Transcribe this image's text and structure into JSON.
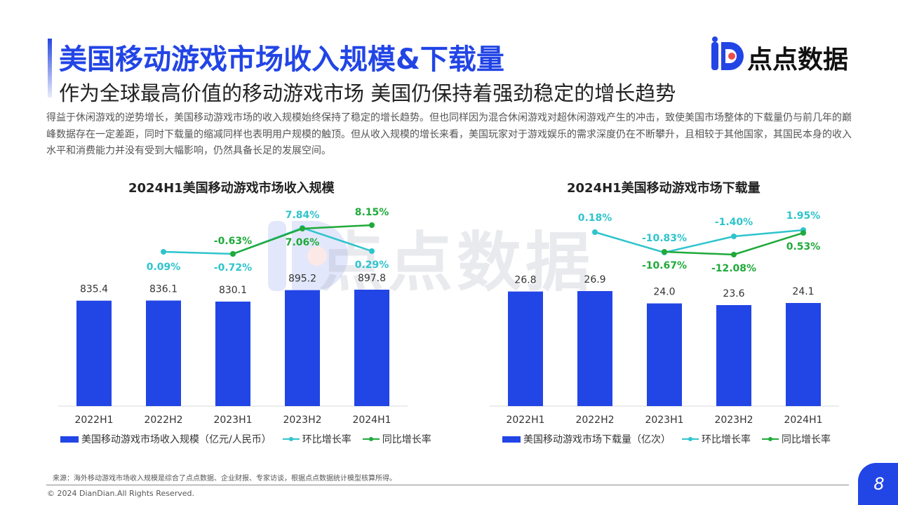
{
  "header": {
    "title": "美国移动游戏市场收入规模&下载量",
    "subtitle": "作为全球最高价值的移动游戏市场 美国仍保持着强劲稳定的增长趋势",
    "brand": "点点数据"
  },
  "intro_text": "得益于休闲游戏的逆势增长，美国移动游戏市场的收入规模始终保持了稳定的增长趋势。但也同样因为混合休闲游戏对超休闲游戏产生的冲击，致使美国市场整体的下载量仍与前几年的巅峰数据存在一定差距，同时下载量的缩减同样也表明用户规模的触顶。但从收入规模的增长来看，美国玩家对于游戏娱乐的需求深度仍在不断攀升，且相较于其他国家，其国民本身的收入水平和消费能力并没有受到大幅影响，仍然具备长足的发展空间。",
  "colors": {
    "bar": "#2245e6",
    "qoq": "#2ec4cc",
    "yoy": "#1faa3a",
    "accent": "#2245e6"
  },
  "chart_data": [
    {
      "type": "bar",
      "title": "2024H1美国移动游戏市场收入规模",
      "categories": [
        "2022H1",
        "2022H2",
        "2023H1",
        "2023H2",
        "2024H1"
      ],
      "series": [
        {
          "name": "美国移动游戏市场收入规模（亿元/人民币）",
          "type": "bar",
          "values": [
            835.4,
            836.1,
            830.1,
            895.2,
            897.8
          ],
          "labels": [
            "835.4",
            "836.1",
            "830.1",
            "895.2",
            "897.8"
          ]
        },
        {
          "name": "环比增长率",
          "type": "line",
          "values": [
            null,
            0.09,
            -0.72,
            7.84,
            0.29
          ],
          "labels": [
            "",
            "0.09%",
            "-0.72%",
            "7.84%",
            "0.29%"
          ]
        },
        {
          "name": "同比增长率",
          "type": "line",
          "values": [
            null,
            null,
            -0.63,
            7.06,
            8.15
          ],
          "labels": [
            "",
            "",
            "-0.63%",
            "7.06%",
            "8.15%"
          ]
        }
      ]
    },
    {
      "type": "bar",
      "title": "2024H1美国移动游戏市场下载量",
      "categories": [
        "2022H1",
        "2022H2",
        "2023H1",
        "2023H2",
        "2024H1"
      ],
      "series": [
        {
          "name": "美国移动游戏市场下载量（亿次）",
          "type": "bar",
          "values": [
            26.8,
            26.9,
            24.0,
            23.6,
            24.1
          ],
          "labels": [
            "26.8",
            "26.9",
            "24.0",
            "23.6",
            "24.1"
          ]
        },
        {
          "name": "环比增长率",
          "type": "line",
          "values": [
            null,
            0.18,
            -10.83,
            -1.4,
            1.95
          ],
          "labels": [
            "",
            "0.18%",
            "-10.83%",
            "-1.40%",
            "1.95%"
          ]
        },
        {
          "name": "同比增长率",
          "type": "line",
          "values": [
            null,
            null,
            -10.67,
            -12.08,
            0.53
          ],
          "labels": [
            "",
            "",
            "-10.67%",
            "-12.08%",
            "0.53%"
          ]
        }
      ]
    }
  ],
  "source_text": "来源：海外移动游戏市场收入规模是综合了点点数据、企业财报、专家访谈，根据点点数据统计模型核算所得。",
  "copyright": "© 2024 DianDian.All Rights Reserved.",
  "page_number": "8"
}
